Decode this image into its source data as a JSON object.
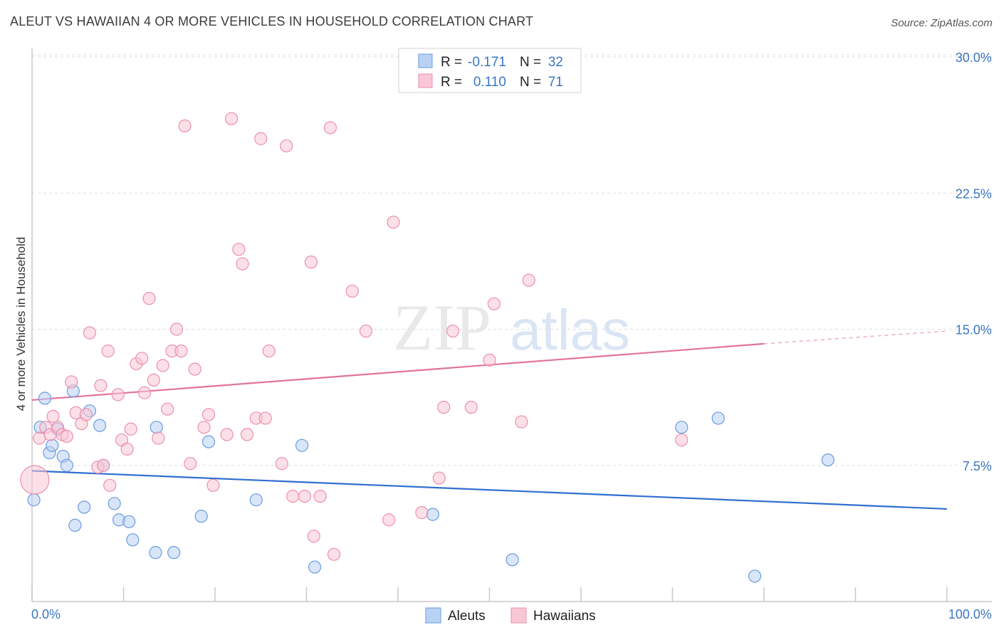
{
  "title": "ALEUT VS HAWAIIAN 4 OR MORE VEHICLES IN HOUSEHOLD CORRELATION CHART",
  "source": "Source: ZipAtlas.com",
  "watermark": {
    "zip": "ZIP",
    "atlas": "atlas"
  },
  "colors": {
    "aleut_fill": "#b9d2f4",
    "aleut_stroke": "#6a9be0",
    "aleut_line": "#2f6fd0",
    "hawaiian_fill": "#f9c6d6",
    "hawaiian_stroke": "#ec8fab",
    "hawaiian_line": "#e2739c",
    "tick_text": "#3a76c4",
    "grid": "#dddddd"
  },
  "legend": {
    "rows": [
      {
        "r_label": "R = ",
        "r_value": "-0.171",
        "n_label": "N = ",
        "n_value": "32"
      },
      {
        "r_label": "R = ",
        "r_value": "0.110",
        "n_label": "N = ",
        "n_value": "71"
      }
    ]
  },
  "chart_data": {
    "type": "scatter",
    "title": "ALEUT VS HAWAIIAN 4 OR MORE VEHICLES IN HOUSEHOLD CORRELATION CHART",
    "xlabel": "",
    "ylabel": "4 or more Vehicles in Household",
    "xlim": [
      0,
      100
    ],
    "ylim": [
      0,
      30
    ],
    "x_tick_labels": [
      "0.0%",
      "100.0%"
    ],
    "y_ticks": [
      7.5,
      15.0,
      22.5,
      30.0
    ],
    "y_tick_labels": [
      "7.5%",
      "15.0%",
      "22.5%",
      "30.0%"
    ],
    "grid": true,
    "legend_position": "top-center",
    "series": [
      {
        "name": "Aleuts",
        "r": -0.171,
        "n": 32,
        "trend": {
          "x": [
            0,
            100
          ],
          "y": [
            7.2,
            5.1
          ]
        },
        "points": [
          [
            0.2,
            5.6
          ],
          [
            0.9,
            9.6
          ],
          [
            1.4,
            11.2
          ],
          [
            1.9,
            8.2
          ],
          [
            2.2,
            8.6
          ],
          [
            2.8,
            9.5
          ],
          [
            3.4,
            8.0
          ],
          [
            3.8,
            7.5
          ],
          [
            4.5,
            11.6
          ],
          [
            4.7,
            4.2
          ],
          [
            5.7,
            5.2
          ],
          [
            6.3,
            10.5
          ],
          [
            7.4,
            9.7
          ],
          [
            7.8,
            7.5
          ],
          [
            9.0,
            5.4
          ],
          [
            9.5,
            4.5
          ],
          [
            10.6,
            4.4
          ],
          [
            11.0,
            3.4
          ],
          [
            13.5,
            2.7
          ],
          [
            13.6,
            9.6
          ],
          [
            15.5,
            2.7
          ],
          [
            18.5,
            4.7
          ],
          [
            19.3,
            8.8
          ],
          [
            24.5,
            5.6
          ],
          [
            29.5,
            8.6
          ],
          [
            30.9,
            1.9
          ],
          [
            43.8,
            4.8
          ],
          [
            52.5,
            2.3
          ],
          [
            71.0,
            9.6
          ],
          [
            75.0,
            10.1
          ],
          [
            79.0,
            1.4
          ],
          [
            87.0,
            7.8
          ]
        ]
      },
      {
        "name": "Hawaiians",
        "r": 0.11,
        "n": 71,
        "trend": {
          "x": [
            0,
            80
          ],
          "y": [
            11.1,
            14.2
          ]
        },
        "trend_dashed": {
          "x": [
            80,
            100
          ],
          "y": [
            14.2,
            14.9
          ]
        },
        "points": [
          [
            0.3,
            6.7
          ],
          [
            0.8,
            9.0
          ],
          [
            1.5,
            9.6
          ],
          [
            2.0,
            9.2
          ],
          [
            2.3,
            10.2
          ],
          [
            2.8,
            9.6
          ],
          [
            3.3,
            9.2
          ],
          [
            3.8,
            9.1
          ],
          [
            4.3,
            12.1
          ],
          [
            4.8,
            10.4
          ],
          [
            5.4,
            9.8
          ],
          [
            5.9,
            10.3
          ],
          [
            6.3,
            14.8
          ],
          [
            7.2,
            7.4
          ],
          [
            7.5,
            11.9
          ],
          [
            7.8,
            7.5
          ],
          [
            8.3,
            13.8
          ],
          [
            8.5,
            6.4
          ],
          [
            9.4,
            11.4
          ],
          [
            9.8,
            8.9
          ],
          [
            10.4,
            8.4
          ],
          [
            10.8,
            9.5
          ],
          [
            11.4,
            13.1
          ],
          [
            12.0,
            13.4
          ],
          [
            12.3,
            11.5
          ],
          [
            12.8,
            16.7
          ],
          [
            13.3,
            12.2
          ],
          [
            13.8,
            9.0
          ],
          [
            14.3,
            13.0
          ],
          [
            14.8,
            10.6
          ],
          [
            15.3,
            13.8
          ],
          [
            15.8,
            15.0
          ],
          [
            16.3,
            13.8
          ],
          [
            16.7,
            26.2
          ],
          [
            17.3,
            7.6
          ],
          [
            17.8,
            12.8
          ],
          [
            18.8,
            9.6
          ],
          [
            19.3,
            10.3
          ],
          [
            19.8,
            6.4
          ],
          [
            21.3,
            9.2
          ],
          [
            21.8,
            26.6
          ],
          [
            22.6,
            19.4
          ],
          [
            23.0,
            18.6
          ],
          [
            23.5,
            9.2
          ],
          [
            24.5,
            10.1
          ],
          [
            25.0,
            25.5
          ],
          [
            25.5,
            10.1
          ],
          [
            25.9,
            13.8
          ],
          [
            27.3,
            7.6
          ],
          [
            27.8,
            25.1
          ],
          [
            28.5,
            5.8
          ],
          [
            29.8,
            5.8
          ],
          [
            30.5,
            18.7
          ],
          [
            30.8,
            3.6
          ],
          [
            31.5,
            5.8
          ],
          [
            32.6,
            26.1
          ],
          [
            33.0,
            2.6
          ],
          [
            35.0,
            17.1
          ],
          [
            36.5,
            14.9
          ],
          [
            39.0,
            4.5
          ],
          [
            39.5,
            20.9
          ],
          [
            42.6,
            4.9
          ],
          [
            44.5,
            6.8
          ],
          [
            45.0,
            10.7
          ],
          [
            46.0,
            14.9
          ],
          [
            48.0,
            10.7
          ],
          [
            50.0,
            13.3
          ],
          [
            50.5,
            16.4
          ],
          [
            53.5,
            9.9
          ],
          [
            54.3,
            17.7
          ],
          [
            71.0,
            8.9
          ]
        ]
      }
    ]
  },
  "bottom_legend": {
    "items": [
      "Aleuts",
      "Hawaiians"
    ]
  }
}
